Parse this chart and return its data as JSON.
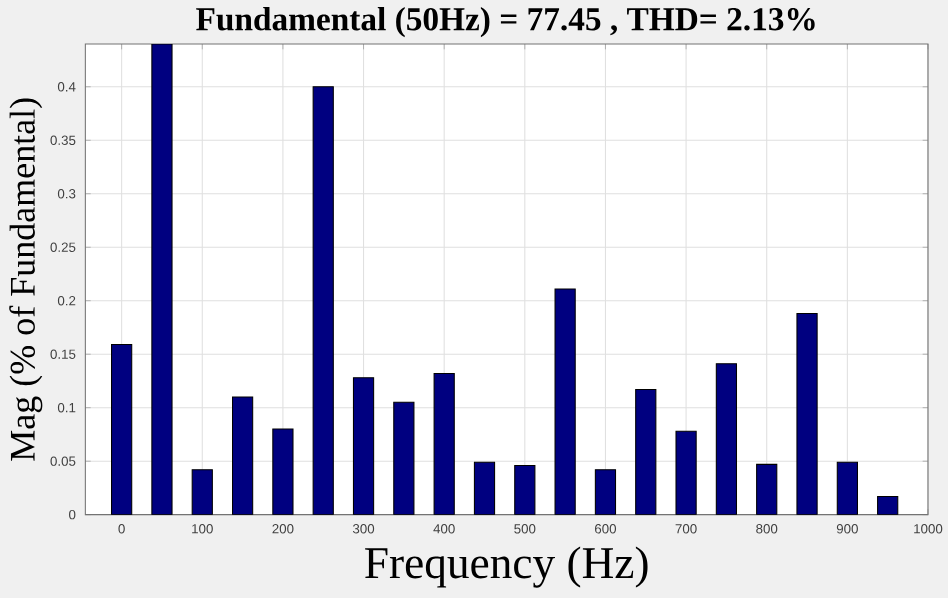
{
  "chart_data": {
    "type": "bar",
    "title": "Fundamental (50Hz) = 77.45 , THD= 2.13%",
    "xlabel": "Frequency (Hz)",
    "ylabel": "Mag (% of Fundamental)",
    "x": [
      0,
      50,
      100,
      150,
      200,
      250,
      300,
      350,
      400,
      450,
      500,
      550,
      600,
      650,
      700,
      750,
      800,
      850,
      900,
      950
    ],
    "values": [
      0.159,
      0.44,
      0.042,
      0.11,
      0.08,
      0.4,
      0.128,
      0.105,
      0.132,
      0.049,
      0.046,
      0.211,
      0.042,
      0.117,
      0.078,
      0.141,
      0.047,
      0.188,
      0.049,
      0.017
    ],
    "color": "#000080",
    "xlim": [
      -45,
      1000
    ],
    "ylim": [
      0,
      0.44
    ],
    "xticks": [
      0,
      100,
      200,
      300,
      400,
      500,
      600,
      700,
      800,
      900,
      1000
    ],
    "yticks": [
      0,
      0.05,
      0.1,
      0.15,
      0.2,
      0.25,
      0.3,
      0.35,
      0.4
    ],
    "grid": true
  }
}
